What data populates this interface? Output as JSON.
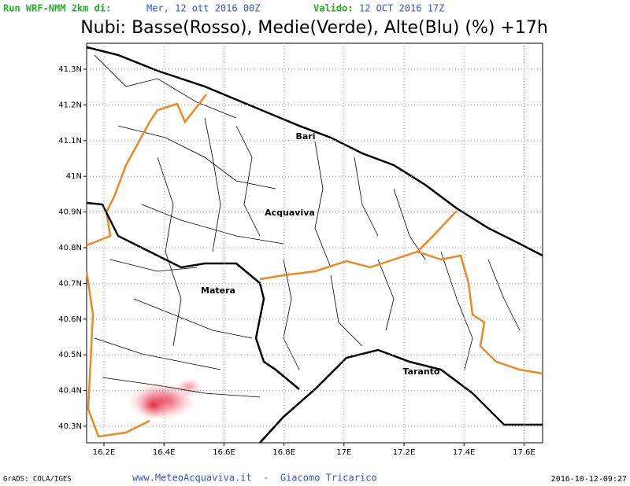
{
  "header": {
    "run_label": "Run WRF-NMM 2km di:",
    "run_date": "Mer, 12 ott 2016 00Z",
    "valid_label": "Valido:",
    "valid_date": "12 OCT 2016 17Z"
  },
  "title": "Nubi: Basse(Rosso), Medie(Verde), Alte(Blu) (%) +17h",
  "map": {
    "lat_labels": [
      "41.3N",
      "41.2N",
      "41.1N",
      "41N",
      "40.9N",
      "40.8N",
      "40.7N",
      "40.6N",
      "40.5N",
      "40.4N",
      "40.3N"
    ],
    "lon_labels": [
      "16.2E",
      "16.4E",
      "16.6E",
      "16.8E",
      "17E",
      "17.2E",
      "17.4E",
      "17.6E"
    ],
    "cities": [
      "Bari",
      "Acquaviva",
      "Matera",
      "Taranto"
    ]
  },
  "footer": {
    "software": "GrADS: COLA/IGES",
    "credit": "www.MeteoAcquaviva.it  -  Giacomo Tricarico",
    "timestamp": "2016-10-12-09:27"
  }
}
